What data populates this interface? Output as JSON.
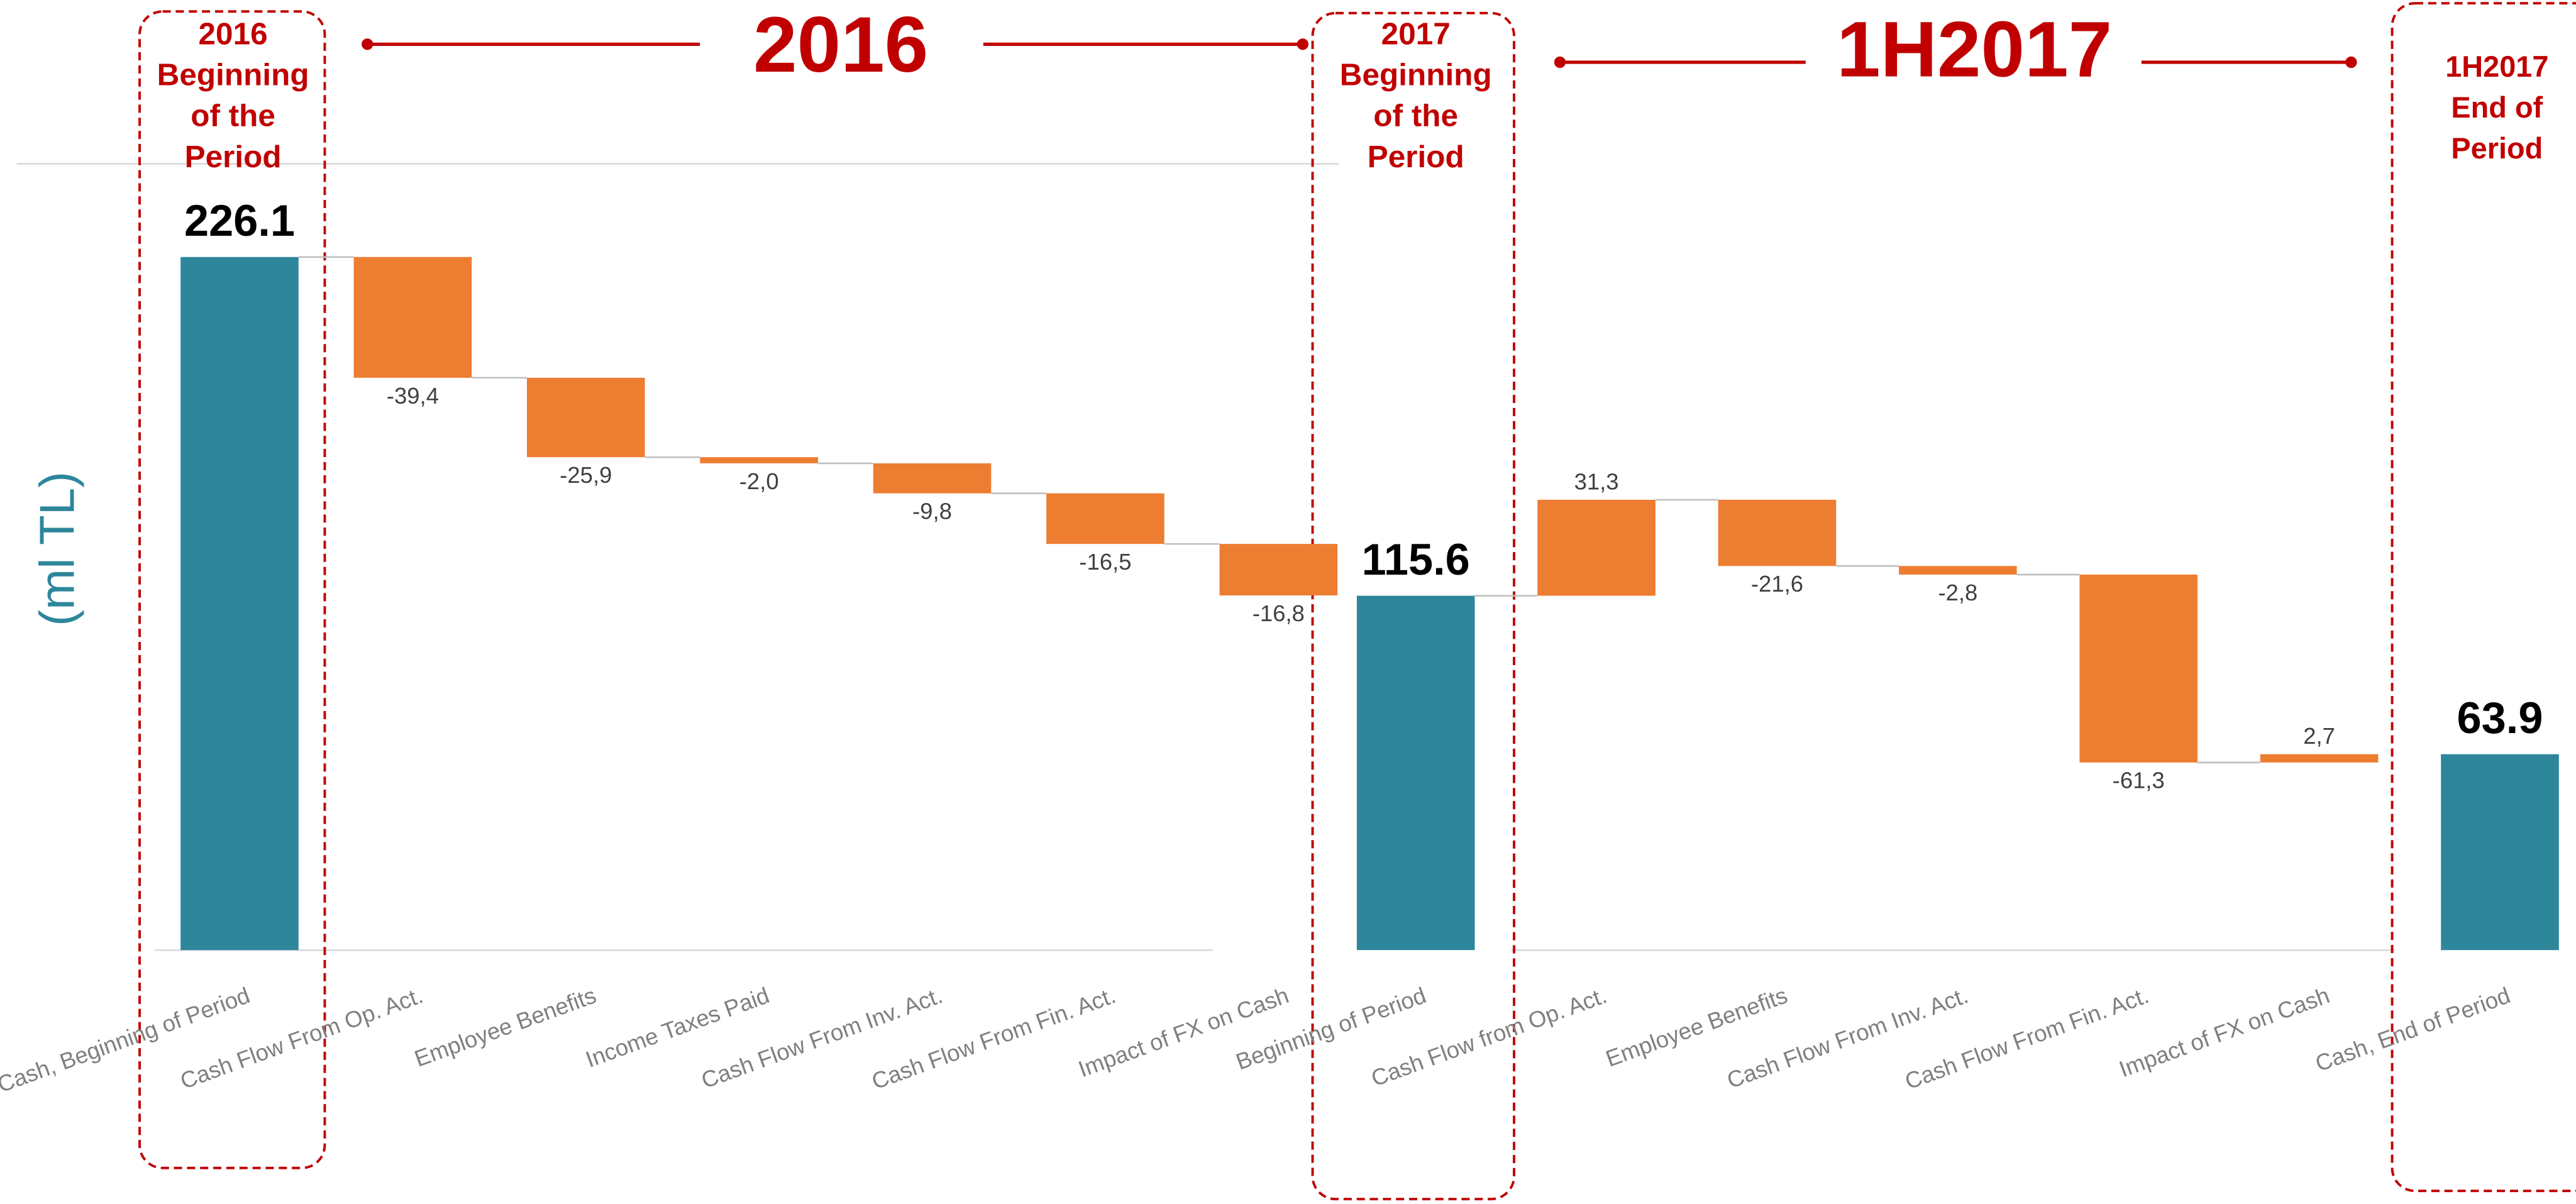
{
  "chart_data": {
    "type": "waterfall",
    "y_label": "(ml TL)",
    "categories": [
      "Cash, Beginning of Period",
      "Cash Flow From Op. Act.",
      "Employee Benefits",
      "Income Taxes Paid",
      "Cash Flow From Inv. Act.",
      "Cash Flow From Fin. Act.",
      "Impact of FX on Cash",
      "Beginning of Period",
      "Cash Flow from Op. Act.",
      "Employee Benefits",
      "Cash Flow From Inv. Act.",
      "Cash Flow From Fin. Act.",
      "Impact of FX on Cash",
      "Cash, End of Period"
    ],
    "values": [
      226.1,
      -39.4,
      -25.9,
      -2.0,
      -9.8,
      -16.5,
      -16.8,
      115.6,
      31.3,
      -21.6,
      -2.8,
      -61.3,
      2.7,
      63.9
    ],
    "value_labels": [
      "226.1",
      "-39,4",
      "-25,9",
      "-2,0",
      "-9,8",
      "-16,5",
      "-16,8",
      "115.6",
      "31,3",
      "-21,6",
      "-2,8",
      "-61,3",
      "2,7",
      "63.9"
    ],
    "measures": [
      "absolute",
      "relative",
      "relative",
      "relative",
      "relative",
      "relative",
      "relative",
      "absolute",
      "relative",
      "relative",
      "relative",
      "relative",
      "relative",
      "absolute"
    ],
    "total_color": "#2e869b",
    "delta_color": "#ed7d31",
    "ylim": [
      0,
      256.5
    ],
    "annotations": {
      "period_2016": "2016",
      "period_1h2017": "1H2017",
      "boxes": [
        [
          "2016",
          "Beginning",
          "of the",
          "Period"
        ],
        [
          "2017",
          "Beginning",
          "of the",
          "Period"
        ],
        [
          "1H2017",
          "End of",
          "Period"
        ]
      ]
    }
  }
}
